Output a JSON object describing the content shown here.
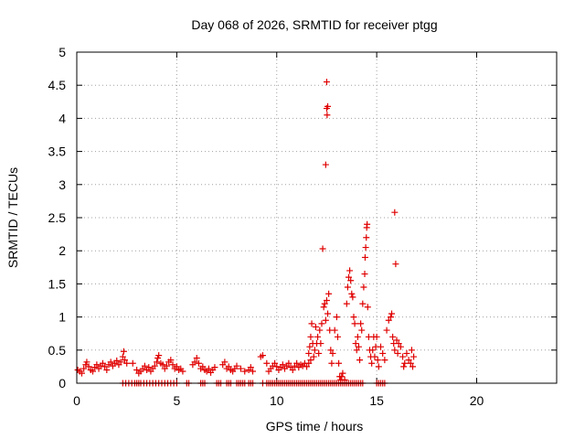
{
  "chart_data": {
    "type": "scatter",
    "title": "Day 068 of 2026, SRMTID for receiver ptgg",
    "xlabel": "GPS time / hours",
    "ylabel": "SRMTID / TECUs",
    "xlim": [
      0,
      24
    ],
    "ylim": [
      0,
      5
    ],
    "x_ticks": [
      0,
      5,
      10,
      15,
      20
    ],
    "x_tick_labels": [
      "0",
      "5",
      "10",
      "15",
      "20"
    ],
    "y_ticks": [
      0,
      0.5,
      1,
      1.5,
      2,
      2.5,
      3,
      3.5,
      4,
      4.5,
      5
    ],
    "y_tick_labels": [
      "0",
      "0.5",
      "1",
      "1.5",
      "2",
      "2.5",
      "3",
      "3.5",
      "4",
      "4.5",
      "5"
    ],
    "grid": true,
    "marker": "+",
    "color": "#e00000",
    "series": [
      {
        "name": "SRMTID",
        "points": [
          [
            0.05,
            0.2
          ],
          [
            0.15,
            0.18
          ],
          [
            0.25,
            0.15
          ],
          [
            0.35,
            0.22
          ],
          [
            0.45,
            0.28
          ],
          [
            0.5,
            0.32
          ],
          [
            0.6,
            0.25
          ],
          [
            0.7,
            0.2
          ],
          [
            0.8,
            0.18
          ],
          [
            0.9,
            0.24
          ],
          [
            1.0,
            0.28
          ],
          [
            1.1,
            0.22
          ],
          [
            1.2,
            0.26
          ],
          [
            1.3,
            0.3
          ],
          [
            1.4,
            0.25
          ],
          [
            1.5,
            0.2
          ],
          [
            1.6,
            0.28
          ],
          [
            1.7,
            0.32
          ],
          [
            1.8,
            0.26
          ],
          [
            1.9,
            0.3
          ],
          [
            2.0,
            0.34
          ],
          [
            2.1,
            0.28
          ],
          [
            2.2,
            0.32
          ],
          [
            2.3,
            0.4
          ],
          [
            2.35,
            0.48
          ],
          [
            2.4,
            0.35
          ],
          [
            2.5,
            0.3
          ],
          [
            2.3,
            0.0
          ],
          [
            2.45,
            0.0
          ],
          [
            2.6,
            0.0
          ],
          [
            2.75,
            0.0
          ],
          [
            2.9,
            0.0
          ],
          [
            3.0,
            0.0
          ],
          [
            3.1,
            0.0
          ],
          [
            3.2,
            0.0
          ],
          [
            3.35,
            0.0
          ],
          [
            3.5,
            0.0
          ],
          [
            3.65,
            0.0
          ],
          [
            3.8,
            0.0
          ],
          [
            3.95,
            0.0
          ],
          [
            4.1,
            0.0
          ],
          [
            4.25,
            0.0
          ],
          [
            4.4,
            0.0
          ],
          [
            4.55,
            0.0
          ],
          [
            4.7,
            0.0
          ],
          [
            4.85,
            0.0
          ],
          [
            5.0,
            0.0
          ],
          [
            5.5,
            0.0
          ],
          [
            5.6,
            0.0
          ],
          [
            2.8,
            0.3
          ],
          [
            3.0,
            0.2
          ],
          [
            3.1,
            0.15
          ],
          [
            3.2,
            0.18
          ],
          [
            3.3,
            0.22
          ],
          [
            3.4,
            0.26
          ],
          [
            3.5,
            0.2
          ],
          [
            3.6,
            0.24
          ],
          [
            3.7,
            0.18
          ],
          [
            3.8,
            0.22
          ],
          [
            3.9,
            0.26
          ],
          [
            4.0,
            0.32
          ],
          [
            4.05,
            0.38
          ],
          [
            4.1,
            0.42
          ],
          [
            4.2,
            0.3
          ],
          [
            4.3,
            0.28
          ],
          [
            4.4,
            0.22
          ],
          [
            4.5,
            0.26
          ],
          [
            4.6,
            0.32
          ],
          [
            4.7,
            0.35
          ],
          [
            4.8,
            0.28
          ],
          [
            4.9,
            0.22
          ],
          [
            5.0,
            0.25
          ],
          [
            5.1,
            0.2
          ],
          [
            5.2,
            0.22
          ],
          [
            5.3,
            0.18
          ],
          [
            5.8,
            0.28
          ],
          [
            5.9,
            0.32
          ],
          [
            6.0,
            0.38
          ],
          [
            6.1,
            0.3
          ],
          [
            6.2,
            0.22
          ],
          [
            6.3,
            0.25
          ],
          [
            6.4,
            0.2
          ],
          [
            6.5,
            0.18
          ],
          [
            6.6,
            0.22
          ],
          [
            6.7,
            0.16
          ],
          [
            6.8,
            0.2
          ],
          [
            6.9,
            0.24
          ],
          [
            6.2,
            0.0
          ],
          [
            6.3,
            0.0
          ],
          [
            6.4,
            0.0
          ],
          [
            7.0,
            0.0
          ],
          [
            7.1,
            0.0
          ],
          [
            7.2,
            0.0
          ],
          [
            7.5,
            0.0
          ],
          [
            7.6,
            0.0
          ],
          [
            7.7,
            0.0
          ],
          [
            8.0,
            0.0
          ],
          [
            8.1,
            0.0
          ],
          [
            8.2,
            0.0
          ],
          [
            8.3,
            0.0
          ],
          [
            8.4,
            0.0
          ],
          [
            8.6,
            0.0
          ],
          [
            8.7,
            0.0
          ],
          [
            8.8,
            0.0
          ],
          [
            9.3,
            0.0
          ],
          [
            9.5,
            0.0
          ],
          [
            9.6,
            0.0
          ],
          [
            9.7,
            0.0
          ],
          [
            9.8,
            0.0
          ],
          [
            9.9,
            0.0
          ],
          [
            10.0,
            0.0
          ],
          [
            10.1,
            0.0
          ],
          [
            10.2,
            0.0
          ],
          [
            10.3,
            0.0
          ],
          [
            10.4,
            0.0
          ],
          [
            10.5,
            0.0
          ],
          [
            10.6,
            0.0
          ],
          [
            10.7,
            0.0
          ],
          [
            10.8,
            0.0
          ],
          [
            10.9,
            0.0
          ],
          [
            11.0,
            0.0
          ],
          [
            11.1,
            0.0
          ],
          [
            11.2,
            0.0
          ],
          [
            11.3,
            0.0
          ],
          [
            11.4,
            0.0
          ],
          [
            11.5,
            0.0
          ],
          [
            11.6,
            0.0
          ],
          [
            11.7,
            0.0
          ],
          [
            11.8,
            0.0
          ],
          [
            11.9,
            0.0
          ],
          [
            12.0,
            0.0
          ],
          [
            12.1,
            0.0
          ],
          [
            12.2,
            0.0
          ],
          [
            12.3,
            0.0
          ],
          [
            12.4,
            0.0
          ],
          [
            12.5,
            0.0
          ],
          [
            12.6,
            0.0
          ],
          [
            12.7,
            0.0
          ],
          [
            12.8,
            0.0
          ],
          [
            12.9,
            0.0
          ],
          [
            13.0,
            0.0
          ],
          [
            13.1,
            0.0
          ],
          [
            13.2,
            0.0
          ],
          [
            13.3,
            0.0
          ],
          [
            13.4,
            0.0
          ],
          [
            13.5,
            0.0
          ],
          [
            13.6,
            0.0
          ],
          [
            13.7,
            0.0
          ],
          [
            13.8,
            0.0
          ],
          [
            13.9,
            0.0
          ],
          [
            14.0,
            0.0
          ],
          [
            14.1,
            0.0
          ],
          [
            14.2,
            0.0
          ],
          [
            14.3,
            0.0
          ],
          [
            15.0,
            0.0
          ],
          [
            15.1,
            0.0
          ],
          [
            15.2,
            0.0
          ],
          [
            15.3,
            0.0
          ],
          [
            15.4,
            0.0
          ],
          [
            7.3,
            0.28
          ],
          [
            7.4,
            0.32
          ],
          [
            7.5,
            0.22
          ],
          [
            7.6,
            0.25
          ],
          [
            7.7,
            0.2
          ],
          [
            7.8,
            0.18
          ],
          [
            7.9,
            0.22
          ],
          [
            8.0,
            0.26
          ],
          [
            8.2,
            0.22
          ],
          [
            8.4,
            0.18
          ],
          [
            8.6,
            0.2
          ],
          [
            8.7,
            0.24
          ],
          [
            8.8,
            0.18
          ],
          [
            9.2,
            0.4
          ],
          [
            9.3,
            0.42
          ],
          [
            9.5,
            0.3
          ],
          [
            9.6,
            0.18
          ],
          [
            9.7,
            0.22
          ],
          [
            9.8,
            0.26
          ],
          [
            9.9,
            0.3
          ],
          [
            10.0,
            0.25
          ],
          [
            10.1,
            0.2
          ],
          [
            10.2,
            0.24
          ],
          [
            10.3,
            0.28
          ],
          [
            10.4,
            0.22
          ],
          [
            10.5,
            0.26
          ],
          [
            10.6,
            0.3
          ],
          [
            10.7,
            0.24
          ],
          [
            10.8,
            0.2
          ],
          [
            10.9,
            0.26
          ],
          [
            11.0,
            0.3
          ],
          [
            11.1,
            0.24
          ],
          [
            11.2,
            0.28
          ],
          [
            11.3,
            0.26
          ],
          [
            11.4,
            0.3
          ],
          [
            11.5,
            0.25
          ],
          [
            11.6,
            0.3
          ],
          [
            11.7,
            0.35
          ],
          [
            11.6,
            0.45
          ],
          [
            11.65,
            0.55
          ],
          [
            11.7,
            0.7
          ],
          [
            11.75,
            0.9
          ],
          [
            11.8,
            0.6
          ],
          [
            11.85,
            0.4
          ],
          [
            11.9,
            0.5
          ],
          [
            11.95,
            0.85
          ],
          [
            12.0,
            0.6
          ],
          [
            12.05,
            0.7
          ],
          [
            12.1,
            0.45
          ],
          [
            12.15,
            0.8
          ],
          [
            12.2,
            0.6
          ],
          [
            12.25,
            0.9
          ],
          [
            12.3,
            2.03
          ],
          [
            12.35,
            1.15
          ],
          [
            12.4,
            1.2
          ],
          [
            12.45,
            0.95
          ],
          [
            12.5,
            1.25
          ],
          [
            12.55,
            1.05
          ],
          [
            12.6,
            1.35
          ],
          [
            12.65,
            0.8
          ],
          [
            12.7,
            0.5
          ],
          [
            12.75,
            0.3
          ],
          [
            12.45,
            3.3
          ],
          [
            12.5,
            4.15
          ],
          [
            12.52,
            4.05
          ],
          [
            12.55,
            4.18
          ],
          [
            12.5,
            4.55
          ],
          [
            12.8,
            0.45
          ],
          [
            12.9,
            0.8
          ],
          [
            13.0,
            1.0
          ],
          [
            13.05,
            0.7
          ],
          [
            13.1,
            0.3
          ],
          [
            13.15,
            0.1
          ],
          [
            13.2,
            0.05
          ],
          [
            13.25,
            0.1
          ],
          [
            13.3,
            0.15
          ],
          [
            13.4,
            0.05
          ],
          [
            13.5,
            1.2
          ],
          [
            13.55,
            1.45
          ],
          [
            13.6,
            1.6
          ],
          [
            13.65,
            1.7
          ],
          [
            13.7,
            1.55
          ],
          [
            13.75,
            1.35
          ],
          [
            13.8,
            1.3
          ],
          [
            13.85,
            1.0
          ],
          [
            13.9,
            0.9
          ],
          [
            13.95,
            0.6
          ],
          [
            14.0,
            0.5
          ],
          [
            14.05,
            0.7
          ],
          [
            14.1,
            0.55
          ],
          [
            14.15,
            0.35
          ],
          [
            14.2,
            0.9
          ],
          [
            14.25,
            0.8
          ],
          [
            14.3,
            1.2
          ],
          [
            14.35,
            1.45
          ],
          [
            14.4,
            1.65
          ],
          [
            14.42,
            1.9
          ],
          [
            14.45,
            2.05
          ],
          [
            14.48,
            2.2
          ],
          [
            14.5,
            2.35
          ],
          [
            14.52,
            2.4
          ],
          [
            14.55,
            1.15
          ],
          [
            14.6,
            0.7
          ],
          [
            14.65,
            0.5
          ],
          [
            14.7,
            0.4
          ],
          [
            14.75,
            0.3
          ],
          [
            14.8,
            0.5
          ],
          [
            14.85,
            0.7
          ],
          [
            14.9,
            0.4
          ],
          [
            14.95,
            0.55
          ],
          [
            15.0,
            0.7
          ],
          [
            15.05,
            0.35
          ],
          [
            15.1,
            0.25
          ],
          [
            15.2,
            0.55
          ],
          [
            15.3,
            0.45
          ],
          [
            15.4,
            0.35
          ],
          [
            15.5,
            0.8
          ],
          [
            15.6,
            0.95
          ],
          [
            15.7,
            1.0
          ],
          [
            15.75,
            1.05
          ],
          [
            15.8,
            0.7
          ],
          [
            15.85,
            0.6
          ],
          [
            15.9,
            0.5
          ],
          [
            15.95,
            1.8
          ],
          [
            15.9,
            2.58
          ],
          [
            16.0,
            0.65
          ],
          [
            16.05,
            0.45
          ],
          [
            16.1,
            0.6
          ],
          [
            16.2,
            0.55
          ],
          [
            16.3,
            0.4
          ],
          [
            16.35,
            0.25
          ],
          [
            16.4,
            0.3
          ],
          [
            16.5,
            0.45
          ],
          [
            16.6,
            0.35
          ],
          [
            16.7,
            0.3
          ],
          [
            16.75,
            0.5
          ],
          [
            16.8,
            0.25
          ],
          [
            16.85,
            0.4
          ]
        ]
      }
    ]
  }
}
